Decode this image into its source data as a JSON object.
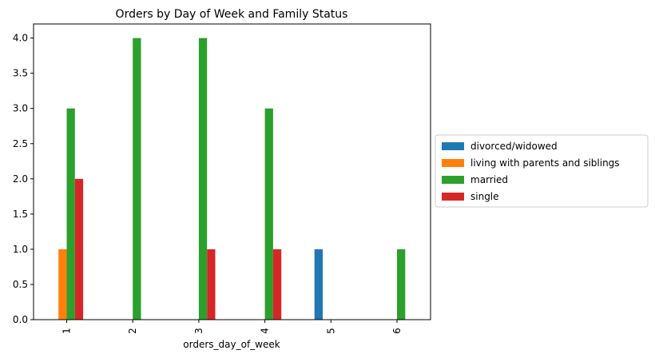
{
  "chart_data": {
    "type": "bar",
    "title": "Orders by Day of Week and Family Status",
    "xlabel": "orders_day_of_week",
    "ylabel": "",
    "categories": [
      "1",
      "2",
      "3",
      "4",
      "5",
      "6"
    ],
    "ylim": [
      0,
      4.2
    ],
    "yticks": [
      "0.0",
      "0.5",
      "1.0",
      "1.5",
      "2.0",
      "2.5",
      "3.0",
      "3.5",
      "4.0"
    ],
    "grid": false,
    "legend_position": "center-right-outside",
    "series": [
      {
        "name": "divorced/widowed",
        "color": "#1f77b4",
        "values": [
          0,
          0,
          0,
          0,
          1,
          0
        ]
      },
      {
        "name": "living with parents and siblings",
        "color": "#ff7f0e",
        "values": [
          1,
          0,
          0,
          0,
          0,
          0
        ]
      },
      {
        "name": "married",
        "color": "#2ca02c",
        "values": [
          3,
          4,
          4,
          3,
          0,
          1
        ]
      },
      {
        "name": "single",
        "color": "#d62728",
        "values": [
          2,
          0,
          1,
          1,
          0,
          0
        ]
      }
    ]
  }
}
